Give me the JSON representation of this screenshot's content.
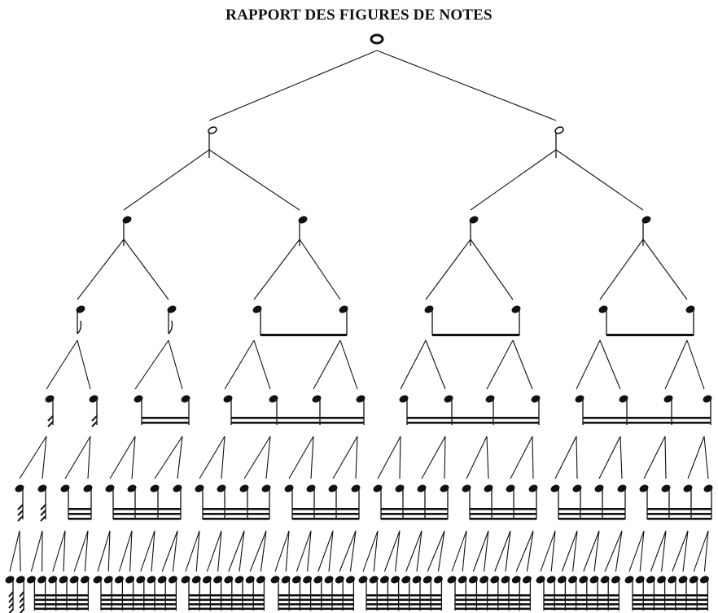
{
  "title": "RAPPORT DES FIGURES DE NOTES",
  "tree": {
    "levels": [
      {
        "figure": "ronde",
        "count": 1,
        "stroke": "#1a1a1a"
      },
      {
        "figure": "blanche",
        "count": 2
      },
      {
        "figure": "noire",
        "count": 4
      },
      {
        "figure": "croche",
        "count": 8
      },
      {
        "figure": "double-croche",
        "count": 16
      },
      {
        "figure": "triple-croche",
        "count": 32
      },
      {
        "figure": "quadruple-croche",
        "count": 64
      }
    ],
    "ink_color": "#111111"
  }
}
